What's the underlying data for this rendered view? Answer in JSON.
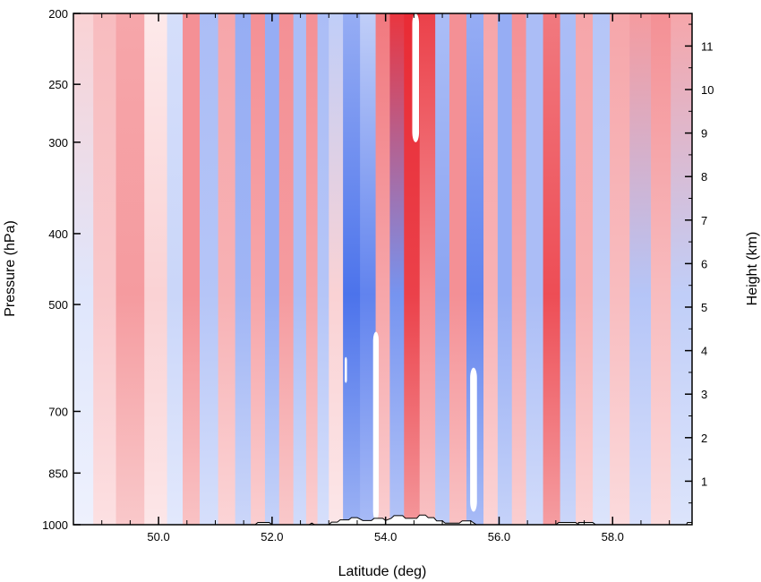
{
  "chart_data": {
    "type": "heatmap",
    "title": "",
    "xlabel": "Latitude (deg)",
    "ylabel": "Pressure (hPa)",
    "y2label": "Height (km)",
    "xlim": [
      48.5,
      59.4
    ],
    "ylim": [
      1000,
      200
    ],
    "y_scale": "log",
    "x_ticks": [
      50,
      52,
      54,
      56,
      58
    ],
    "x_tick_labels": [
      "50.0",
      "52.0",
      "54.0",
      "56.0",
      "58.0"
    ],
    "y_ticks": [
      200,
      250,
      300,
      400,
      500,
      700,
      850,
      1000
    ],
    "y_tick_labels": [
      "200",
      "250",
      "300",
      "400",
      "500",
      "700",
      "850",
      "1000"
    ],
    "y2_ticks_km": [
      1,
      2,
      3,
      4,
      5,
      6,
      7,
      8,
      9,
      10,
      11
    ],
    "y2_tick_labels": [
      "1",
      "2",
      "3",
      "4",
      "5",
      "6",
      "7",
      "8",
      "9",
      "10",
      "11"
    ],
    "colors": {
      "positive": "#e8202a",
      "negative": "#2c5ae8",
      "neutral": "#ffffff",
      "terrain_outline": "#000000"
    },
    "vertical_bands": [
      {
        "lat": 48.7,
        "value": -0.15,
        "top": 0.2
      },
      {
        "lat": 49.0,
        "value": 0.25,
        "top": 0.3
      },
      {
        "lat": 49.5,
        "value": 0.45,
        "top": 0.4
      },
      {
        "lat": 50.0,
        "value": 0.2,
        "top": 0.1
      },
      {
        "lat": 50.3,
        "value": -0.25,
        "top": -0.2
      },
      {
        "lat": 50.55,
        "value": 0.5,
        "top": 0.5
      },
      {
        "lat": 50.9,
        "value": -0.35,
        "top": -0.4
      },
      {
        "lat": 51.2,
        "value": 0.35,
        "top": 0.4
      },
      {
        "lat": 51.5,
        "value": -0.45,
        "top": -0.5
      },
      {
        "lat": 51.75,
        "value": 0.4,
        "top": 0.5
      },
      {
        "lat": 52.0,
        "value": -0.5,
        "top": -0.5
      },
      {
        "lat": 52.25,
        "value": 0.45,
        "top": 0.5
      },
      {
        "lat": 52.5,
        "value": -0.4,
        "top": -0.4
      },
      {
        "lat": 52.7,
        "value": 0.4,
        "top": 0.5
      },
      {
        "lat": 52.9,
        "value": -0.35,
        "top": -0.4
      },
      {
        "lat": 53.1,
        "value": 0.2,
        "top": -0.3
      },
      {
        "lat": 53.4,
        "value": -0.85,
        "top": -0.5
      },
      {
        "lat": 53.7,
        "value": -0.75,
        "top": -0.3
      },
      {
        "lat": 53.95,
        "value": 0.4,
        "top": 0.6
      },
      {
        "lat": 54.2,
        "value": -0.65,
        "top": 0.9
      },
      {
        "lat": 54.45,
        "value": 0.85,
        "top": 0.95
      },
      {
        "lat": 54.75,
        "value": 0.5,
        "top": 0.85
      },
      {
        "lat": 55.0,
        "value": -0.55,
        "top": -0.4
      },
      {
        "lat": 55.25,
        "value": 0.5,
        "top": 0.5
      },
      {
        "lat": 55.6,
        "value": -0.75,
        "top": -0.5
      },
      {
        "lat": 55.85,
        "value": 0.35,
        "top": 0.4
      },
      {
        "lat": 56.1,
        "value": -0.5,
        "top": -0.5
      },
      {
        "lat": 56.35,
        "value": 0.4,
        "top": 0.5
      },
      {
        "lat": 56.6,
        "value": -0.4,
        "top": -0.4
      },
      {
        "lat": 56.95,
        "value": 0.8,
        "top": 0.6
      },
      {
        "lat": 57.2,
        "value": -0.45,
        "top": -0.4
      },
      {
        "lat": 57.5,
        "value": 0.35,
        "top": 0.4
      },
      {
        "lat": 57.8,
        "value": -0.3,
        "top": -0.35
      },
      {
        "lat": 58.1,
        "value": 0.3,
        "top": 0.4
      },
      {
        "lat": 58.5,
        "value": -0.35,
        "top": 0.45
      },
      {
        "lat": 58.85,
        "value": 0.3,
        "top": 0.5
      },
      {
        "lat": 59.2,
        "value": -0.3,
        "top": 0.4
      }
    ],
    "missing_regions": [
      {
        "lat_center": 53.83,
        "lat_halfwidth": 0.05,
        "p_top": 545,
        "p_bottom": 985
      },
      {
        "lat_center": 55.55,
        "lat_halfwidth": 0.06,
        "p_top": 610,
        "p_bottom": 960
      },
      {
        "lat_center": 54.53,
        "lat_halfwidth": 0.06,
        "p_top": 200,
        "p_bottom": 300
      },
      {
        "lat_center": 53.3,
        "lat_halfwidth": 0.02,
        "p_top": 590,
        "p_bottom": 640
      }
    ],
    "terrain_profile": [
      [
        48.5,
        1000
      ],
      [
        51.7,
        1000
      ],
      [
        51.75,
        993
      ],
      [
        51.95,
        993
      ],
      [
        52.0,
        1000
      ],
      [
        52.65,
        1000
      ],
      [
        52.7,
        995
      ],
      [
        52.75,
        1000
      ],
      [
        53.0,
        1000
      ],
      [
        53.05,
        992
      ],
      [
        53.15,
        992
      ],
      [
        53.2,
        985
      ],
      [
        53.35,
        985
      ],
      [
        53.4,
        978
      ],
      [
        53.5,
        978
      ],
      [
        53.6,
        987
      ],
      [
        53.75,
        987
      ],
      [
        53.8,
        980
      ],
      [
        53.95,
        980
      ],
      [
        54.0,
        987
      ],
      [
        54.1,
        980
      ],
      [
        54.15,
        972
      ],
      [
        54.3,
        972
      ],
      [
        54.35,
        980
      ],
      [
        54.55,
        980
      ],
      [
        54.6,
        970
      ],
      [
        54.7,
        970
      ],
      [
        54.75,
        978
      ],
      [
        54.85,
        978
      ],
      [
        54.9,
        988
      ],
      [
        55.0,
        988
      ],
      [
        55.05,
        995
      ],
      [
        55.3,
        995
      ],
      [
        55.35,
        988
      ],
      [
        55.5,
        988
      ],
      [
        55.6,
        1000
      ],
      [
        57.0,
        1000
      ],
      [
        57.05,
        993
      ],
      [
        57.35,
        993
      ],
      [
        57.4,
        1000
      ],
      [
        57.4,
        993
      ],
      [
        57.65,
        993
      ],
      [
        57.7,
        1000
      ],
      [
        59.3,
        1000
      ],
      [
        59.32,
        993
      ],
      [
        59.4,
        993
      ]
    ]
  }
}
